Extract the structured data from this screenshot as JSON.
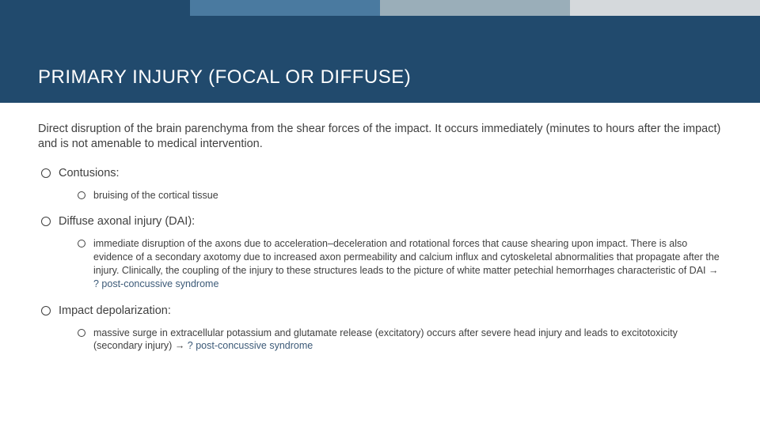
{
  "colors": {
    "strip1": "#214a6d",
    "strip2": "#4a7aa0",
    "strip3": "#9aaeb9",
    "strip4": "#d5d9dc",
    "title_band_bg": "#214a6d",
    "title_text": "#ffffff",
    "body_text": "#404040",
    "suffix_text": "#3c5a78",
    "page_bg": "#ffffff"
  },
  "typography": {
    "title_fontsize": 24,
    "intro_fontsize": 14.5,
    "l1_fontsize": 14.5,
    "l2_fontsize": 12.5,
    "font_family": "Arial"
  },
  "title": "PRIMARY INJURY (FOCAL OR DIFFUSE)",
  "intro": "Direct disruption of the brain parenchyma from the shear forces of the impact. It occurs immediately (minutes to hours after the impact) and is not amenable to medical intervention.",
  "items": [
    {
      "label": "Contusions:",
      "sub": "bruising of the cortical tissue",
      "suffix": ""
    },
    {
      "label": "Diffuse axonal injury (DAI):",
      "sub": "immediate disruption of the axons due to acceleration–deceleration and rotational forces that cause shearing upon impact. There is also evidence of a secondary axotomy due to increased axon permeability and calcium influx and cytoskeletal abnormalities that propagate after the injury. Clinically, the coupling of the injury to these structures leads to the picture of white matter petechial hemorrhages characteristic of DAI → ",
      "suffix": "? post-concussive syndrome"
    },
    {
      "label": "Impact depolarization:",
      "sub": "massive surge in extracellular potassium and glutamate release (excitatory) occurs after severe head injury and leads to excitotoxicity (secondary injury) → ",
      "suffix": "? post-concussive syndrome"
    }
  ]
}
